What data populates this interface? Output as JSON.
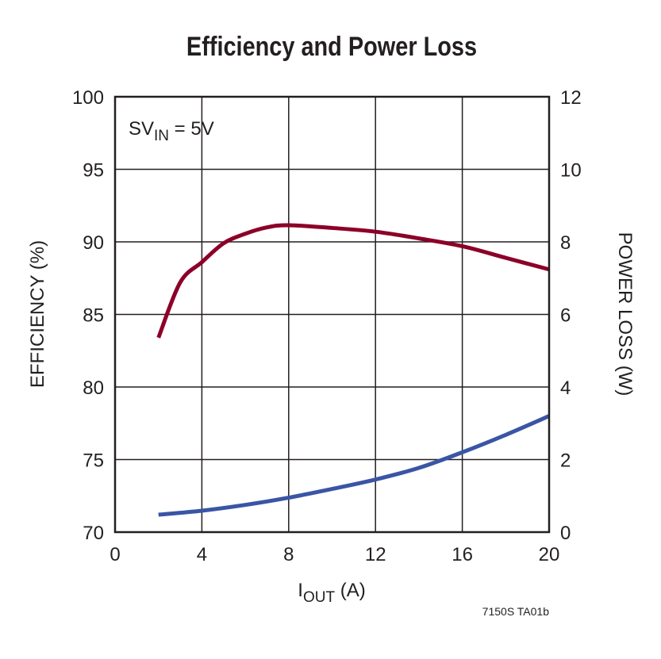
{
  "chart_data": {
    "type": "line",
    "title": "Efficiency and Power Loss",
    "annotation": {
      "main": "SV",
      "sub": "IN",
      "rest": " = 5V"
    },
    "xlabel": {
      "main": "I",
      "sub": "OUT",
      "rest": " (A)"
    },
    "ylabel": "EFFICIENCY (%)",
    "y2label": "POWER LOSS (W)",
    "footnote": "7150S TA01b",
    "xlim": [
      0,
      20
    ],
    "ylim": [
      70,
      100
    ],
    "y2lim": [
      0,
      12
    ],
    "xticks": [
      "0",
      "4",
      "8",
      "12",
      "16",
      "20"
    ],
    "yticks": [
      "70",
      "75",
      "80",
      "85",
      "90",
      "95",
      "100"
    ],
    "y2ticks": [
      "0",
      "2",
      "4",
      "6",
      "8",
      "10",
      "12"
    ],
    "grid": true,
    "series": [
      {
        "axis": "left",
        "color": "#8c0028",
        "x": [
          2,
          3,
          4,
          5,
          6,
          7,
          8,
          10,
          12,
          14,
          16,
          18,
          20
        ],
        "y": [
          83.4,
          87.2,
          88.6,
          89.9,
          90.56,
          91.0,
          91.15,
          90.96,
          90.7,
          90.24,
          89.7,
          88.9,
          88.1
        ]
      },
      {
        "axis": "right",
        "color": "#3a55a5",
        "x": [
          2,
          4,
          6,
          8,
          10,
          12,
          14,
          16,
          18,
          20
        ],
        "y": [
          0.48,
          0.59,
          0.75,
          0.95,
          1.19,
          1.45,
          1.77,
          2.2,
          2.68,
          3.2
        ]
      }
    ]
  }
}
